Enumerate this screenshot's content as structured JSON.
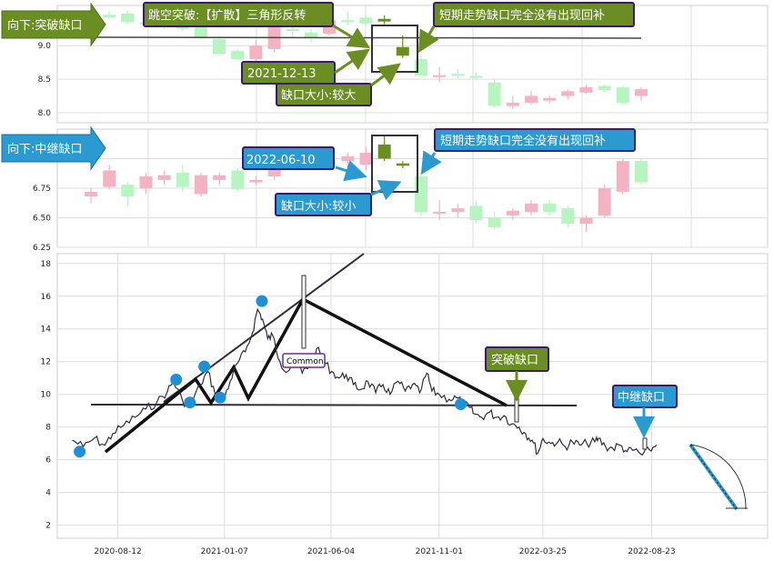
{
  "colors": {
    "up": "#f4b3c2",
    "down": "#b7f5c0",
    "gap_candle": "#6b8e23",
    "green_box": "#6b8e23",
    "blue_box": "#2b9ad0",
    "box_border": "#3a1a6e",
    "price_line": "#2e2e3a",
    "pivot": "#1f8fd6",
    "grid": "#dcdcdc"
  },
  "chart_data": [
    {
      "type": "candlestick",
      "panel": "top",
      "title": "向下:突破缺口",
      "ylim": [
        7.85,
        9.6
      ],
      "yticks": [
        8.0,
        8.5,
        9.0
      ],
      "candles": [
        {
          "o": 9.46,
          "h": 9.52,
          "l": 9.4,
          "c": 9.42
        },
        {
          "o": 9.48,
          "h": 9.52,
          "l": 9.32,
          "c": 9.35
        },
        {
          "o": 9.35,
          "h": 9.4,
          "l": 9.28,
          "c": 9.32
        },
        {
          "o": 9.32,
          "h": 9.38,
          "l": 9.25,
          "c": 9.3
        },
        {
          "o": 9.38,
          "h": 9.42,
          "l": 9.22,
          "c": 9.25
        },
        {
          "o": 9.28,
          "h": 9.32,
          "l": 9.1,
          "c": 9.12
        },
        {
          "o": 9.1,
          "h": 9.15,
          "l": 8.85,
          "c": 8.88
        },
        {
          "o": 8.92,
          "h": 8.95,
          "l": 8.78,
          "c": 8.8
        },
        {
          "o": 8.8,
          "h": 9.08,
          "l": 8.75,
          "c": 9.0
        },
        {
          "o": 8.95,
          "h": 9.3,
          "l": 8.9,
          "c": 9.28
        },
        {
          "o": 9.25,
          "h": 9.3,
          "l": 9.12,
          "c": 9.22
        },
        {
          "o": 9.2,
          "h": 9.25,
          "l": 9.05,
          "c": 9.12
        },
        {
          "o": 9.18,
          "h": 9.42,
          "l": 9.15,
          "c": 9.38
        },
        {
          "o": 9.38,
          "h": 9.5,
          "l": 9.3,
          "c": 9.35
        },
        {
          "o": 9.42,
          "h": 9.45,
          "l": 9.3,
          "c": 9.33
        },
        {
          "o": 9.4,
          "h": 9.45,
          "l": 9.32,
          "c": 9.36
        },
        {
          "o": 8.98,
          "h": 9.15,
          "l": 8.82,
          "c": 8.85
        },
        {
          "o": 8.8,
          "h": 8.85,
          "l": 8.55,
          "c": 8.55
        },
        {
          "o": 8.55,
          "h": 8.68,
          "l": 8.45,
          "c": 8.56
        },
        {
          "o": 8.58,
          "h": 8.65,
          "l": 8.5,
          "c": 8.55
        },
        {
          "o": 8.55,
          "h": 8.6,
          "l": 8.48,
          "c": 8.52
        },
        {
          "o": 8.45,
          "h": 8.5,
          "l": 8.08,
          "c": 8.1
        },
        {
          "o": 8.1,
          "h": 8.25,
          "l": 8.05,
          "c": 8.15
        },
        {
          "o": 8.15,
          "h": 8.32,
          "l": 8.12,
          "c": 8.25
        },
        {
          "o": 8.18,
          "h": 8.26,
          "l": 8.14,
          "c": 8.22
        },
        {
          "o": 8.25,
          "h": 8.35,
          "l": 8.2,
          "c": 8.32
        },
        {
          "o": 8.3,
          "h": 8.42,
          "l": 8.28,
          "c": 8.38
        },
        {
          "o": 8.4,
          "h": 8.42,
          "l": 8.3,
          "c": 8.34
        },
        {
          "o": 8.38,
          "h": 8.4,
          "l": 8.12,
          "c": 8.15
        },
        {
          "o": 8.25,
          "h": 8.38,
          "l": 8.18,
          "c": 8.35
        }
      ],
      "hline": 9.35,
      "annotations": [
        "跳空突破:【扩散】三角形反转",
        "短期走势缺口完全没有出现回补",
        "2021-12-13",
        "缺口大小:较大"
      ]
    },
    {
      "type": "candlestick",
      "panel": "middle",
      "title": "向下:中继缺口",
      "ylim": [
        6.25,
        7.25
      ],
      "yticks": [
        6.25,
        6.5,
        6.75,
        7.0
      ],
      "candles": [
        {
          "o": 6.68,
          "h": 6.75,
          "l": 6.62,
          "c": 6.72
        },
        {
          "o": 6.76,
          "h": 6.95,
          "l": 6.74,
          "c": 6.9
        },
        {
          "o": 6.78,
          "h": 6.8,
          "l": 6.6,
          "c": 6.68
        },
        {
          "o": 6.75,
          "h": 6.88,
          "l": 6.7,
          "c": 6.85
        },
        {
          "o": 6.82,
          "h": 6.9,
          "l": 6.78,
          "c": 6.86
        },
        {
          "o": 6.88,
          "h": 6.95,
          "l": 6.72,
          "c": 6.76
        },
        {
          "o": 6.7,
          "h": 6.88,
          "l": 6.68,
          "c": 6.86
        },
        {
          "o": 6.82,
          "h": 6.88,
          "l": 6.78,
          "c": 6.86
        },
        {
          "o": 6.9,
          "h": 6.92,
          "l": 6.72,
          "c": 6.74
        },
        {
          "o": 6.8,
          "h": 6.85,
          "l": 6.78,
          "c": 6.82
        },
        {
          "o": 6.85,
          "h": 7.02,
          "l": 6.82,
          "c": 7.0
        },
        {
          "o": 6.95,
          "h": 7.0,
          "l": 6.9,
          "c": 6.96
        },
        {
          "o": 7.02,
          "h": 7.05,
          "l": 6.96,
          "c": 6.98
        },
        {
          "o": 6.98,
          "h": 7.02,
          "l": 6.9,
          "c": 6.93
        },
        {
          "o": 6.98,
          "h": 7.05,
          "l": 6.92,
          "c": 7.02
        },
        {
          "o": 6.95,
          "h": 7.1,
          "l": 6.9,
          "c": 7.05
        },
        {
          "o": 7.12,
          "h": 7.2,
          "l": 6.98,
          "c": 7.0
        },
        {
          "o": 6.96,
          "h": 6.98,
          "l": 6.92,
          "c": 6.94
        },
        {
          "o": 6.85,
          "h": 6.88,
          "l": 6.52,
          "c": 6.55
        },
        {
          "o": 6.55,
          "h": 6.65,
          "l": 6.48,
          "c": 6.55
        },
        {
          "o": 6.55,
          "h": 6.62,
          "l": 6.5,
          "c": 6.58
        },
        {
          "o": 6.6,
          "h": 6.65,
          "l": 6.45,
          "c": 6.48
        },
        {
          "o": 6.5,
          "h": 6.55,
          "l": 6.4,
          "c": 6.42
        },
        {
          "o": 6.52,
          "h": 6.58,
          "l": 6.48,
          "c": 6.56
        },
        {
          "o": 6.55,
          "h": 6.65,
          "l": 6.52,
          "c": 6.62
        },
        {
          "o": 6.62,
          "h": 6.65,
          "l": 6.52,
          "c": 6.55
        },
        {
          "o": 6.58,
          "h": 6.6,
          "l": 6.42,
          "c": 6.45
        },
        {
          "o": 6.45,
          "h": 6.52,
          "l": 6.38,
          "c": 6.5
        },
        {
          "o": 6.52,
          "h": 6.78,
          "l": 6.5,
          "c": 6.75
        },
        {
          "o": 6.72,
          "h": 7.0,
          "l": 6.7,
          "c": 6.98
        },
        {
          "o": 6.98,
          "h": 7.0,
          "l": 6.78,
          "c": 6.8
        }
      ],
      "annotations": [
        "2022-06-10",
        "短期走势缺口完全没有出现回补",
        "缺口大小:较小"
      ]
    },
    {
      "type": "line",
      "panel": "bottom",
      "ylim": [
        1.2,
        18.6
      ],
      "yticks": [
        2,
        4,
        6,
        8,
        10,
        12,
        14,
        16,
        18
      ],
      "xlim": [
        "2020-05-20",
        "2023-01-31"
      ],
      "xticks": [
        "2020-08-12",
        "2021-01-07",
        "2021-06-04",
        "2021-11-01",
        "2022-03-25",
        "2022-08-23"
      ],
      "series_points": [
        [
          "2020-06-10",
          7.2
        ],
        [
          "2020-06-25",
          6.8
        ],
        [
          "2020-07-10",
          7.3
        ],
        [
          "2020-07-25",
          6.9
        ],
        [
          "2020-08-05",
          7.6
        ],
        [
          "2020-08-20",
          8.1
        ],
        [
          "2020-09-05",
          8.6
        ],
        [
          "2020-09-20",
          9.1
        ],
        [
          "2020-10-05",
          9.5
        ],
        [
          "2020-10-20",
          10.2
        ],
        [
          "2020-10-28",
          10.8
        ],
        [
          "2020-11-10",
          9.6
        ],
        [
          "2020-11-20",
          9.3
        ],
        [
          "2020-12-05",
          10.6
        ],
        [
          "2020-12-15",
          11.4
        ],
        [
          "2020-12-25",
          10.0
        ],
        [
          "2021-01-05",
          9.6
        ],
        [
          "2021-01-15",
          10.8
        ],
        [
          "2021-01-25",
          11.9
        ],
        [
          "2021-02-05",
          12.6
        ],
        [
          "2021-02-15",
          13.8
        ],
        [
          "2021-02-22",
          15.2
        ],
        [
          "2021-03-01",
          14.6
        ],
        [
          "2021-03-08",
          13.4
        ],
        [
          "2021-03-15",
          13.6
        ],
        [
          "2021-03-25",
          12.0
        ],
        [
          "2021-04-05",
          11.4
        ],
        [
          "2021-04-15",
          12.4
        ],
        [
          "2021-04-25",
          11.3
        ],
        [
          "2021-05-05",
          11.8
        ],
        [
          "2021-05-15",
          12.8
        ],
        [
          "2021-05-25",
          12.0
        ],
        [
          "2021-06-05",
          11.4
        ],
        [
          "2021-06-15",
          11.0
        ],
        [
          "2021-06-25",
          11.2
        ],
        [
          "2021-07-05",
          10.6
        ],
        [
          "2021-07-15",
          10.3
        ],
        [
          "2021-07-25",
          10.8
        ],
        [
          "2021-08-05",
          10.1
        ],
        [
          "2021-08-15",
          10.6
        ],
        [
          "2021-08-25",
          10.0
        ],
        [
          "2021-09-05",
          10.8
        ],
        [
          "2021-09-15",
          10.2
        ],
        [
          "2021-09-25",
          10.6
        ],
        [
          "2021-10-05",
          10.1
        ],
        [
          "2021-10-15",
          11.3
        ],
        [
          "2021-10-22",
          10.2
        ],
        [
          "2021-11-01",
          10.0
        ],
        [
          "2021-11-15",
          9.7
        ],
        [
          "2021-11-25",
          9.8
        ],
        [
          "2021-12-05",
          9.4
        ],
        [
          "2021-12-13",
          9.2
        ],
        [
          "2021-12-20",
          8.8
        ],
        [
          "2021-12-30",
          8.6
        ],
        [
          "2022-01-10",
          8.9
        ],
        [
          "2022-01-20",
          8.6
        ],
        [
          "2022-01-30",
          8.7
        ],
        [
          "2022-02-10",
          8.2
        ],
        [
          "2022-02-20",
          8.0
        ],
        [
          "2022-03-01",
          7.6
        ],
        [
          "2022-03-10",
          7.2
        ],
        [
          "2022-03-18",
          6.4
        ],
        [
          "2022-03-25",
          7.3
        ],
        [
          "2022-04-05",
          7.0
        ],
        [
          "2022-04-15",
          7.1
        ],
        [
          "2022-04-25",
          6.8
        ],
        [
          "2022-05-05",
          7.1
        ],
        [
          "2022-05-15",
          6.9
        ],
        [
          "2022-05-25",
          7.0
        ],
        [
          "2022-06-05",
          7.1
        ],
        [
          "2022-06-10",
          7.3
        ],
        [
          "2022-06-20",
          6.8
        ],
        [
          "2022-06-30",
          6.7
        ],
        [
          "2022-07-10",
          6.9
        ],
        [
          "2022-07-20",
          6.5
        ],
        [
          "2022-07-30",
          6.6
        ],
        [
          "2022-08-10",
          6.3
        ],
        [
          "2022-08-20",
          6.6
        ],
        [
          "2022-08-30",
          6.9
        ]
      ],
      "pivots": [
        [
          "2020-06-20",
          6.5
        ],
        [
          "2020-11-01",
          10.9
        ],
        [
          "2020-11-20",
          9.5
        ],
        [
          "2020-12-10",
          11.7
        ],
        [
          "2021-01-01",
          9.8
        ],
        [
          "2021-02-28",
          15.7
        ],
        [
          "2021-12-01",
          9.4
        ]
      ],
      "annotations": [
        "Common",
        "突破缺口",
        "中继缺口"
      ]
    }
  ]
}
